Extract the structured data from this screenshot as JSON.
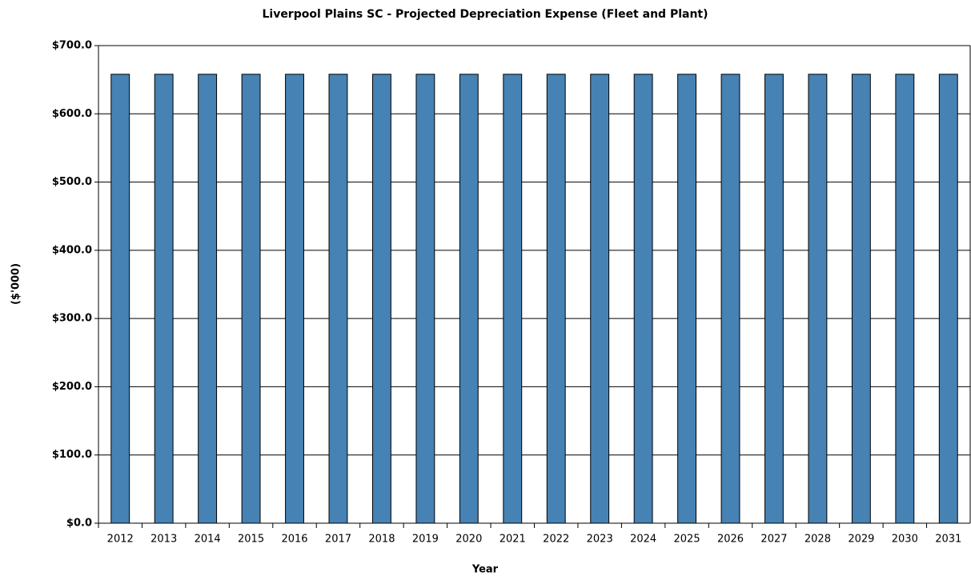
{
  "chart_data": {
    "type": "bar",
    "title": "Liverpool Plains SC - Projected Depreciation Expense (Fleet and Plant)",
    "x_label": "Year",
    "y_label": "($'000)",
    "categories": [
      "2012",
      "2013",
      "2014",
      "2015",
      "2016",
      "2017",
      "2018",
      "2019",
      "2020",
      "2021",
      "2022",
      "2023",
      "2024",
      "2025",
      "2026",
      "2027",
      "2028",
      "2029",
      "2030",
      "2031"
    ],
    "values": [
      658,
      658,
      658,
      658,
      658,
      658,
      658,
      658,
      658,
      658,
      658,
      658,
      658,
      658,
      658,
      658,
      658,
      658,
      658,
      658
    ],
    "color": "#4682b4",
    "ylim": [
      0,
      700
    ],
    "yticks": [
      {
        "value": 0,
        "label": "$0.0"
      },
      {
        "value": 100,
        "label": "$100.0"
      },
      {
        "value": 200,
        "label": "$200.0"
      },
      {
        "value": 300,
        "label": "$300.0"
      },
      {
        "value": 400,
        "label": "$400.0"
      },
      {
        "value": 500,
        "label": "$500.0"
      },
      {
        "value": 600,
        "label": "$600.0"
      },
      {
        "value": 700,
        "label": "$700.0"
      }
    ],
    "grid": true
  }
}
